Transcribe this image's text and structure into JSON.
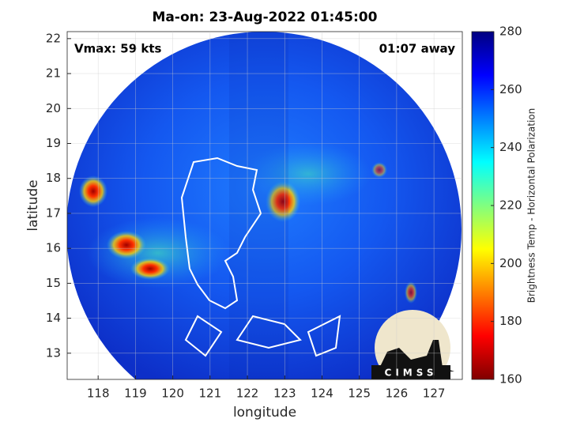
{
  "chart_data": {
    "type": "map",
    "title": "Ma-on: 23-Aug-2022 01:45:00",
    "annotations": [
      "Vmax: 59 kts",
      "01:07 away"
    ],
    "xlabel": "longitude",
    "ylabel": "latitude",
    "xlim": [
      117.17,
      127.76
    ],
    "xticks": [
      118,
      119,
      120,
      121,
      122,
      123,
      124,
      125,
      126,
      127
    ],
    "ylim": [
      12.25,
      22.2
    ],
    "yticks": [
      13,
      14,
      15,
      16,
      17,
      18,
      19,
      20,
      21,
      22
    ],
    "grid": true,
    "colorbar": {
      "label": "Brightness Temp - Horizontal Polarization",
      "lim": [
        160,
        280
      ],
      "ticks": [
        160,
        180,
        200,
        220,
        240,
        260,
        280
      ],
      "colormap": "jet"
    },
    "logo": "CIMSS"
  }
}
